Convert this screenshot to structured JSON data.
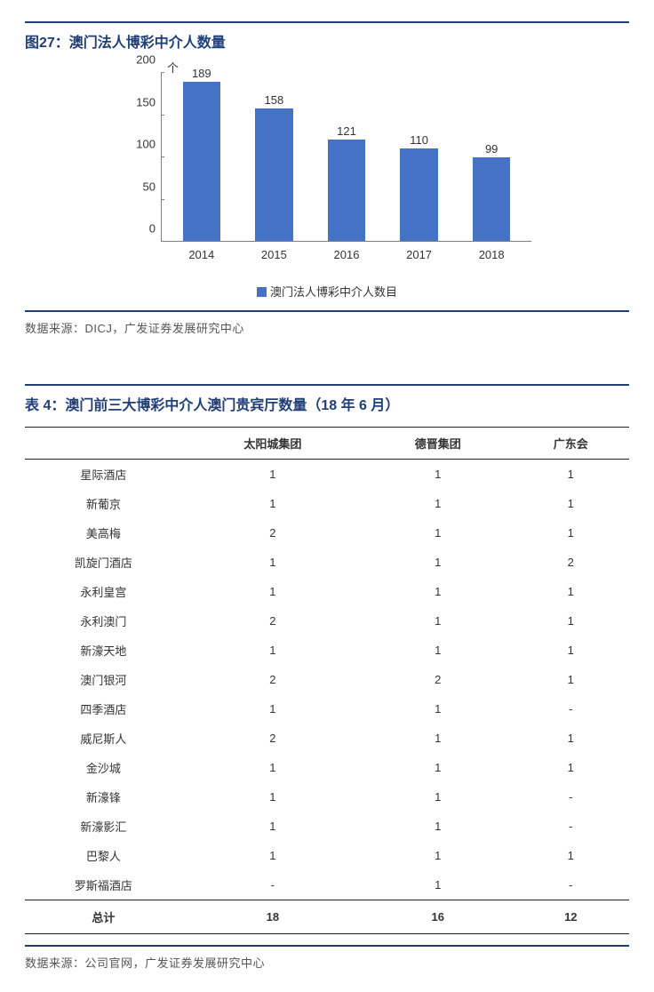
{
  "figure": {
    "title": "图27：澳门法人博彩中介人数量",
    "source": "数据来源：DICJ，广发证券发展研究中心",
    "chart": {
      "type": "bar",
      "y_unit": "个",
      "categories": [
        "2014",
        "2015",
        "2016",
        "2017",
        "2018"
      ],
      "values": [
        189,
        158,
        121,
        110,
        99
      ],
      "value_labels": [
        "189",
        "158",
        "121",
        "110",
        "99"
      ],
      "bar_color": "#4472c4",
      "ylim": [
        0,
        200
      ],
      "ytick_step": 50,
      "yticks": [
        "0",
        "50",
        "100",
        "150",
        "200"
      ],
      "legend": "澳门法人博彩中介人数目",
      "axis_color": "#808080",
      "label_fontsize": 13
    }
  },
  "table": {
    "title": "表 4：澳门前三大博彩中介人澳门贵宾厅数量（18 年 6 月）",
    "source": "数据来源：公司官网，广发证券发展研究中心",
    "columns": [
      "",
      "太阳城集团",
      "德晋集团",
      "广东会"
    ],
    "rows": [
      [
        "星际酒店",
        "1",
        "1",
        "1"
      ],
      [
        "新葡京",
        "1",
        "1",
        "1"
      ],
      [
        "美高梅",
        "2",
        "1",
        "1"
      ],
      [
        "凯旋门酒店",
        "1",
        "1",
        "2"
      ],
      [
        "永利皇宫",
        "1",
        "1",
        "1"
      ],
      [
        "永利澳门",
        "2",
        "1",
        "1"
      ],
      [
        "新濠天地",
        "1",
        "1",
        "1"
      ],
      [
        "澳门银河",
        "2",
        "2",
        "1"
      ],
      [
        "四季酒店",
        "1",
        "1",
        "-"
      ],
      [
        "威尼斯人",
        "2",
        "1",
        "1"
      ],
      [
        "金沙城",
        "1",
        "1",
        "1"
      ],
      [
        "新濠锋",
        "1",
        "1",
        "-"
      ],
      [
        "新濠影汇",
        "1",
        "1",
        "-"
      ],
      [
        "巴黎人",
        "1",
        "1",
        "1"
      ],
      [
        "罗斯福酒店",
        "-",
        "1",
        "-"
      ]
    ],
    "total_label": "总计",
    "total": [
      "18",
      "16",
      "12"
    ]
  }
}
